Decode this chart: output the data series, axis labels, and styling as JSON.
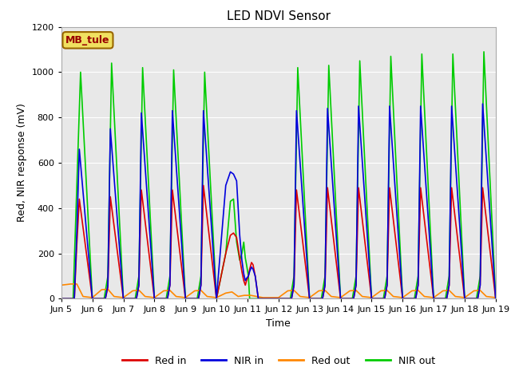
{
  "title": "LED NDVI Sensor",
  "ylabel": "Red, NIR response (mV)",
  "xlabel": "Time",
  "ylim": [
    0,
    1200
  ],
  "xlim": [
    0,
    14
  ],
  "x_tick_positions": [
    0,
    1,
    2,
    3,
    4,
    5,
    6,
    7,
    8,
    9,
    10,
    11,
    12,
    13,
    14
  ],
  "x_tick_labels": [
    "Jun 5",
    "Jun 6",
    "Jun 7",
    "Jun 8",
    "Jun 9",
    "Jun 10",
    "Jun 11",
    "Jun 12",
    "Jun 13",
    "Jun 14",
    "Jun 15",
    "Jun 16",
    "Jun 17",
    "Jun 18",
    "Jun 19"
  ],
  "annotation": "MB_tule",
  "fig_bg": "#ffffff",
  "plot_bg": "#e8e8e8",
  "plot_outer_bg": "#d0d0d0",
  "title_fontsize": 11,
  "label_fontsize": 9,
  "tick_fontsize": 8,
  "legend_fontsize": 9,
  "colors": {
    "red_in": "#dd0000",
    "nir_in": "#0000dd",
    "red_out": "#ff8800",
    "nir_out": "#00cc00"
  },
  "red_in_x": [
    0.0,
    0.42,
    0.5,
    0.58,
    1.0,
    1.42,
    1.5,
    1.58,
    2.0,
    2.42,
    2.5,
    2.58,
    3.0,
    3.42,
    3.5,
    3.58,
    4.0,
    4.42,
    4.5,
    4.58,
    5.0,
    5.3,
    5.45,
    5.55,
    5.65,
    5.75,
    5.82,
    5.88,
    5.93,
    5.97,
    6.03,
    6.07,
    6.13,
    6.18,
    6.25,
    6.35,
    6.45,
    6.55,
    6.65,
    7.0,
    7.42,
    7.5,
    7.58,
    8.0,
    8.42,
    8.5,
    8.58,
    9.0,
    9.42,
    9.5,
    9.58,
    10.0,
    10.42,
    10.5,
    10.58,
    11.0,
    11.42,
    11.5,
    11.58,
    12.0,
    12.42,
    12.5,
    12.58,
    13.0,
    13.42,
    13.5,
    13.58,
    14.0
  ],
  "red_in_y": [
    0,
    0,
    240,
    440,
    0,
    0,
    50,
    450,
    0,
    0,
    60,
    480,
    0,
    0,
    60,
    480,
    0,
    0,
    60,
    500,
    0,
    200,
    280,
    290,
    270,
    180,
    120,
    80,
    60,
    80,
    100,
    130,
    160,
    150,
    100,
    0,
    0,
    0,
    0,
    0,
    0,
    60,
    480,
    0,
    0,
    60,
    490,
    0,
    0,
    60,
    490,
    0,
    0,
    60,
    490,
    0,
    0,
    60,
    490,
    0,
    0,
    60,
    490,
    0,
    0,
    60,
    490,
    0
  ],
  "nir_in_x": [
    0.0,
    0.42,
    0.5,
    0.58,
    1.0,
    1.42,
    1.5,
    1.58,
    2.0,
    2.42,
    2.5,
    2.58,
    3.0,
    3.42,
    3.5,
    3.58,
    4.0,
    4.42,
    4.5,
    4.58,
    5.0,
    5.3,
    5.45,
    5.55,
    5.65,
    5.75,
    5.82,
    5.88,
    5.93,
    5.97,
    6.03,
    6.07,
    6.13,
    6.18,
    6.25,
    6.35,
    6.45,
    6.55,
    6.65,
    7.0,
    7.42,
    7.5,
    7.58,
    8.0,
    8.42,
    8.5,
    8.58,
    9.0,
    9.42,
    9.5,
    9.58,
    10.0,
    10.42,
    10.5,
    10.58,
    11.0,
    11.42,
    11.5,
    11.58,
    12.0,
    12.42,
    12.5,
    12.58,
    13.0,
    13.42,
    13.5,
    13.58,
    14.0
  ],
  "nir_in_y": [
    0,
    0,
    300,
    660,
    0,
    0,
    60,
    750,
    0,
    0,
    60,
    820,
    0,
    0,
    60,
    830,
    0,
    0,
    60,
    830,
    0,
    500,
    560,
    550,
    520,
    280,
    170,
    110,
    80,
    90,
    100,
    120,
    140,
    130,
    100,
    0,
    0,
    0,
    0,
    0,
    0,
    60,
    830,
    0,
    0,
    60,
    840,
    0,
    0,
    60,
    850,
    0,
    0,
    60,
    850,
    0,
    0,
    60,
    850,
    0,
    0,
    60,
    850,
    0,
    0,
    60,
    860,
    0
  ],
  "nir_out_x": [
    0.0,
    0.38,
    0.5,
    0.62,
    1.0,
    1.38,
    1.5,
    1.62,
    2.0,
    2.38,
    2.5,
    2.62,
    3.0,
    3.38,
    3.5,
    3.62,
    4.0,
    4.38,
    4.5,
    4.62,
    5.0,
    5.3,
    5.45,
    5.55,
    5.65,
    5.75,
    5.82,
    5.88,
    5.93,
    5.97,
    6.03,
    6.07,
    6.15,
    6.25,
    6.35,
    6.45,
    6.55,
    6.65,
    7.0,
    7.38,
    7.5,
    7.62,
    8.0,
    8.38,
    8.5,
    8.62,
    9.0,
    9.38,
    9.5,
    9.62,
    10.0,
    10.38,
    10.5,
    10.62,
    11.0,
    11.38,
    11.5,
    11.62,
    12.0,
    12.38,
    12.5,
    12.62,
    13.0,
    13.38,
    13.5,
    13.62,
    14.0
  ],
  "nir_out_y": [
    0,
    0,
    500,
    1000,
    0,
    0,
    100,
    1040,
    0,
    0,
    100,
    1020,
    0,
    0,
    100,
    1010,
    0,
    0,
    100,
    1000,
    0,
    200,
    430,
    440,
    250,
    170,
    200,
    250,
    180,
    150,
    100,
    0,
    0,
    0,
    0,
    0,
    0,
    0,
    0,
    0,
    100,
    1020,
    0,
    0,
    100,
    1030,
    0,
    0,
    100,
    1050,
    0,
    0,
    100,
    1070,
    0,
    0,
    100,
    1080,
    0,
    0,
    100,
    1080,
    0,
    0,
    100,
    1090,
    0
  ],
  "red_out_x": [
    0.0,
    0.3,
    0.5,
    0.7,
    1.0,
    1.3,
    1.5,
    1.7,
    2.0,
    2.3,
    2.5,
    2.7,
    3.0,
    3.3,
    3.5,
    3.7,
    4.0,
    4.3,
    4.5,
    4.7,
    5.0,
    5.3,
    5.5,
    5.7,
    5.9,
    6.1,
    6.3,
    6.5,
    6.7,
    7.0,
    7.3,
    7.5,
    7.7,
    8.0,
    8.3,
    8.5,
    8.7,
    9.0,
    9.3,
    9.5,
    9.7,
    10.0,
    10.3,
    10.5,
    10.7,
    11.0,
    11.3,
    11.5,
    11.7,
    12.0,
    12.3,
    12.5,
    12.7,
    13.0,
    13.3,
    13.5,
    13.7,
    14.0
  ],
  "red_out_y": [
    60,
    65,
    65,
    10,
    5,
    40,
    42,
    10,
    5,
    35,
    38,
    10,
    5,
    35,
    37,
    10,
    5,
    35,
    37,
    10,
    5,
    25,
    30,
    10,
    15,
    15,
    10,
    5,
    5,
    5,
    35,
    37,
    10,
    5,
    35,
    37,
    10,
    5,
    35,
    37,
    10,
    5,
    35,
    37,
    10,
    5,
    35,
    37,
    10,
    5,
    35,
    37,
    10,
    5,
    35,
    37,
    10,
    5
  ]
}
